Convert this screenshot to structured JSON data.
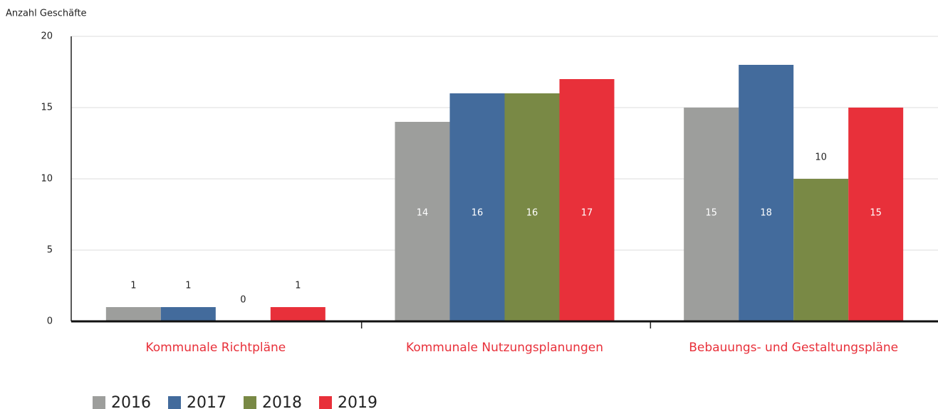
{
  "chart_data": {
    "type": "bar",
    "y_axis_label": "Anzahl Geschäfte",
    "categories": [
      "Kommunale Richtpläne",
      "Kommunale Nutzungsplanungen",
      "Bebauungs- und Gestaltungspläne"
    ],
    "series": [
      {
        "name": "2016",
        "color": "#9d9e9c",
        "values": [
          1,
          14,
          15
        ]
      },
      {
        "name": "2017",
        "color": "#436b9c",
        "values": [
          1,
          16,
          18
        ]
      },
      {
        "name": "2018",
        "color": "#798945",
        "values": [
          0,
          16,
          10
        ]
      },
      {
        "name": "2019",
        "color": "#e8303a",
        "values": [
          1,
          17,
          15
        ]
      }
    ],
    "ylim": [
      0,
      20
    ],
    "yticks": [
      0,
      5,
      10,
      15,
      20
    ],
    "grid": true,
    "legend": "bottom"
  }
}
